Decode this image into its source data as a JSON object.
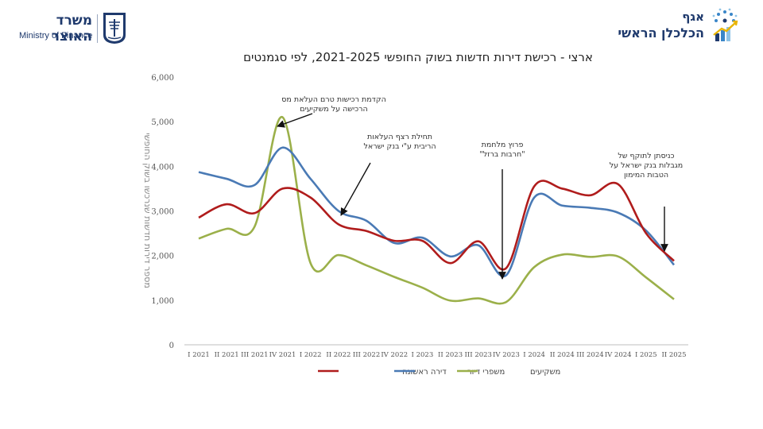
{
  "header": {
    "ministry_he": "משרד האוצר",
    "ministry_en": "Ministry of Finance",
    "dept_line1": "אגף",
    "dept_line2": "הכלכלן הראשי"
  },
  "colors": {
    "brand": "#1f3a6d",
    "first_apartment": "#b01c1c",
    "upgraders": "#4a7ab5",
    "investors": "#9bb04a"
  },
  "chart_data": {
    "type": "line",
    "title": "ארצי - רכישת דירות חדשות בשוק החופשי 2021-2025, לפי סגמנטים",
    "ylabel": "מספר דירות חדשות שנרכשו בשוק החופשי",
    "xlabel": "",
    "ylim": [
      0,
      6000
    ],
    "yticks": [
      "0",
      "1,000",
      "2,000",
      "3,000",
      "4,000",
      "5,000",
      "6,000"
    ],
    "grid": false,
    "legend_position": "bottom",
    "categories": [
      "I 2021",
      "II 2021",
      "III 2021",
      "IV 2021",
      "I 2022",
      "II 2022",
      "III 2022",
      "IV 2022",
      "I 2023",
      "II 2023",
      "III 2023",
      "IV 2023",
      "I 2024",
      "II 2024",
      "III 2024",
      "IV 2024",
      "I 2025",
      "II 2025"
    ],
    "series": [
      {
        "name": "דירה ראשונה",
        "color": "#b01c1c",
        "values": [
          2850,
          3150,
          2950,
          3500,
          3300,
          2700,
          2550,
          2330,
          2330,
          1830,
          2320,
          1720,
          3550,
          3500,
          3350,
          3600,
          2500,
          1880
        ]
      },
      {
        "name": "משפרי דיור",
        "color": "#4a7ab5",
        "values": [
          3870,
          3720,
          3580,
          4420,
          3720,
          3000,
          2780,
          2280,
          2400,
          1980,
          2230,
          1560,
          3300,
          3120,
          3070,
          2960,
          2560,
          1790
        ]
      },
      {
        "name": "משקיעים",
        "color": "#9bb04a",
        "values": [
          2380,
          2600,
          2650,
          5100,
          1830,
          2010,
          1780,
          1520,
          1280,
          990,
          1040,
          960,
          1740,
          2020,
          1970,
          1980,
          1510,
          1020
        ]
      }
    ],
    "annotations": [
      {
        "lines": [
          "הקדמת רכישות טרם העלאת מס",
          "הרכישה על משקיעים"
        ],
        "category": "IV 2021",
        "value": 5100
      },
      {
        "lines": [
          "תחילת רצף העלאות",
          "הריבית ע\"י בנק ישראל"
        ],
        "category": "II 2022",
        "value": 3000
      },
      {
        "lines": [
          "פרוץ מלחמת",
          "\"חרבות ברזל\""
        ],
        "category": "IV 2023",
        "value": 1720
      },
      {
        "lines": [
          "כניסתן לתוקף של",
          "מגבלות בנק ישראל על",
          "הטבות המימון"
        ],
        "category": "II 2025",
        "value": 1880
      }
    ]
  }
}
